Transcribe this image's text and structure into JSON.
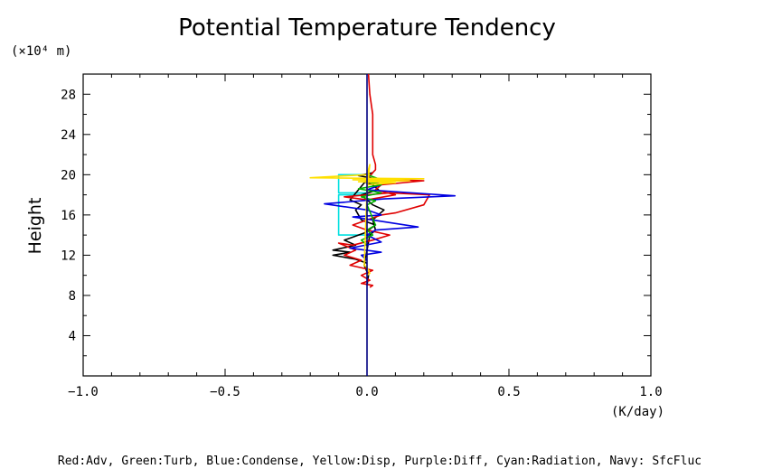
{
  "chart_data": {
    "type": "line",
    "title": "Potential Temperature Tendency",
    "xlabel": "(K/day)",
    "ylabel": "Height",
    "y_unit_label": "(×10⁴ m)",
    "xlim": [
      -1.0,
      1.0
    ],
    "ylim": [
      0,
      30
    ],
    "x_ticks": [
      "−1.0",
      "−0.5",
      "0.0",
      "0.5",
      "1.0"
    ],
    "x_tick_values": [
      -1.0,
      -0.5,
      0.0,
      0.5,
      1.0
    ],
    "y_ticks": [
      "4",
      "8",
      "12",
      "16",
      "20",
      "24",
      "28"
    ],
    "y_tick_values": [
      4,
      8,
      12,
      16,
      20,
      24,
      28
    ],
    "legend_text": "Red:Adv, Green:Turb, Blue:Condense, Yellow:Disp, Purple:Diff, Cyan:Radiation, Navy: SfcFluc",
    "series": [
      {
        "name": "Navy",
        "color": "#000080",
        "x": [
          0,
          0
        ],
        "y": [
          0,
          30
        ]
      },
      {
        "name": "Cyan",
        "color": "#00e0e0",
        "x": [
          0,
          -0.1,
          -0.1,
          0.0,
          0.0,
          -0.1,
          -0.1,
          0.0
        ],
        "y": [
          14.0,
          14.0,
          18.0,
          18.0,
          18.2,
          18.2,
          20.0,
          20.0
        ]
      },
      {
        "name": "Black",
        "color": "#000000",
        "x": [
          0,
          0.005,
          -0.01,
          0.01,
          0.03,
          0.02,
          0.06,
          0.02,
          0.0,
          -0.02,
          0.04,
          0.02,
          -0.01,
          0.03,
          -0.03,
          0.02,
          -0.06,
          -0.02,
          -0.04,
          -0.02,
          0.03,
          -0.01,
          -0.08,
          -0.04,
          -0.12,
          -0.06,
          -0.12,
          -0.04,
          0.0
        ],
        "y": [
          9.0,
          10.0,
          11.0,
          14.0,
          14.5,
          15.5,
          16.5,
          17.0,
          17.5,
          18.0,
          18.5,
          19.0,
          19.3,
          19.6,
          19.9,
          20.2,
          17.5,
          17.0,
          16.5,
          15.5,
          15.0,
          14.2,
          13.5,
          13.0,
          12.5,
          12.3,
          12.0,
          11.6,
          11.2
        ]
      },
      {
        "name": "Red",
        "color": "#e00000",
        "x": [
          0.005,
          0.01,
          0.02,
          0.02,
          0.02,
          0.03,
          0.03,
          0.02,
          0.0,
          0.2,
          0.05,
          0.03,
          0.1,
          0.06,
          0.0,
          -0.08,
          0.08,
          0.22,
          0.2,
          0.1,
          0.05,
          -0.05,
          0.0,
          0.08,
          0.02,
          -0.05,
          -0.1,
          -0.04,
          -0.08,
          -0.02,
          -0.06,
          0.02,
          -0.02,
          0.01,
          -0.02,
          0.02,
          0.01
        ],
        "y": [
          30.0,
          28.0,
          26.0,
          24.0,
          22.0,
          21.0,
          20.5,
          20.2,
          19.6,
          19.4,
          19.0,
          18.5,
          18.0,
          17.8,
          17.5,
          17.8,
          18.2,
          18.0,
          17.0,
          16.2,
          16.0,
          15.0,
          14.5,
          14.0,
          13.5,
          13.0,
          13.2,
          12.5,
          12.0,
          11.5,
          11.0,
          10.5,
          10.0,
          9.5,
          9.2,
          9.0,
          8.8
        ]
      },
      {
        "name": "Blue",
        "color": "#0000e0",
        "x": [
          0,
          0.05,
          0.0,
          0.31,
          0.06,
          -0.15,
          0.0,
          0.05,
          -0.05,
          0.18,
          0.03,
          0.0,
          0.05,
          -0.06,
          0.05,
          -0.02,
          0.0
        ],
        "y": [
          19.5,
          19.0,
          18.5,
          17.9,
          17.6,
          17.1,
          16.5,
          16.0,
          15.8,
          14.8,
          14.5,
          14.0,
          13.3,
          12.7,
          12.3,
          12.0,
          11.5
        ]
      },
      {
        "name": "Green",
        "color": "#00b000",
        "x": [
          0,
          0.04,
          0.0,
          0.05,
          -0.03,
          0.05,
          -0.02,
          0.03,
          0.0,
          0.03,
          0.0,
          0.02,
          -0.02,
          0.0
        ],
        "y": [
          20.0,
          19.6,
          19.3,
          19.0,
          18.6,
          18.2,
          17.8,
          17.4,
          17.0,
          15.0,
          14.5,
          14.0,
          13.5,
          13.0
        ]
      },
      {
        "name": "Yellow",
        "color": "#ffe000",
        "x": [
          0,
          -0.2,
          0.2,
          -0.05,
          0.15,
          -0.03,
          0.1,
          0.0,
          0.0,
          0.01,
          0.0,
          -0.01,
          0.0,
          0.01,
          0.0
        ],
        "y": [
          20.0,
          19.7,
          19.6,
          19.5,
          19.4,
          19.3,
          19.2,
          19.0,
          20.0,
          21.0,
          18.5,
          11.0,
          10.8,
          10.2,
          10.0
        ]
      }
    ]
  }
}
